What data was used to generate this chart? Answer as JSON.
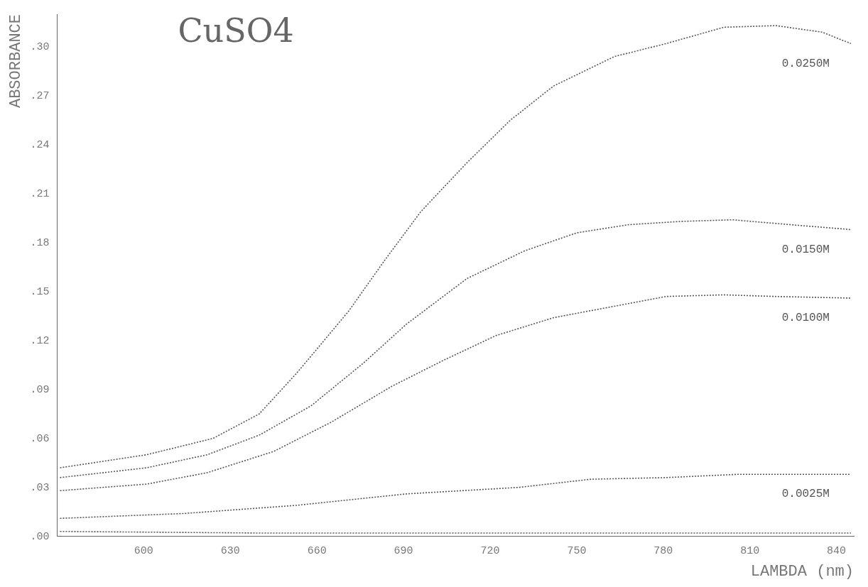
{
  "chart_data": {
    "type": "line",
    "title": "CuSO4",
    "xlabel": "LAMBDA (nm)",
    "ylabel": "ABSORBANCE",
    "xlim": [
      570,
      846
    ],
    "xticks": [
      600,
      630,
      660,
      690,
      720,
      750,
      780,
      810,
      840
    ],
    "ylim": [
      0,
      0.32
    ],
    "yticks": [
      {
        "value": 0,
        "label": ".00"
      },
      {
        "value": 0.03,
        "label": ".03"
      },
      {
        "value": 0.06,
        "label": ".06"
      },
      {
        "value": 0.09,
        "label": ".09"
      },
      {
        "value": 0.12,
        "label": ".12"
      },
      {
        "value": 0.15,
        "label": ".15"
      },
      {
        "value": 0.18,
        "label": ".18"
      },
      {
        "value": 0.21,
        "label": ".21"
      },
      {
        "value": 0.24,
        "label": ".24"
      },
      {
        "value": 0.27,
        "label": ".27"
      },
      {
        "value": 0.3,
        "label": ".30"
      }
    ],
    "grid": false,
    "legend": false,
    "marker": "none",
    "line_style": "dotted",
    "series": [
      {
        "name": "0.0250M",
        "color": "#555555",
        "x": [
          571,
          601,
          624,
          640,
          653,
          671,
          683,
          696,
          712,
          727,
          742,
          763,
          781,
          801,
          819,
          835,
          845
        ],
        "values": [
          0.042,
          0.05,
          0.06,
          0.075,
          0.1,
          0.138,
          0.168,
          0.199,
          0.229,
          0.255,
          0.276,
          0.294,
          0.302,
          0.312,
          0.313,
          0.309,
          0.302
        ]
      },
      {
        "name": "0.0150M",
        "color": "#555555",
        "x": [
          571,
          601,
          622,
          640,
          658,
          676,
          691,
          712,
          732,
          750,
          768,
          786,
          804,
          824,
          845
        ],
        "values": [
          0.036,
          0.042,
          0.05,
          0.062,
          0.08,
          0.106,
          0.13,
          0.158,
          0.175,
          0.186,
          0.191,
          0.193,
          0.194,
          0.191,
          0.188
        ]
      },
      {
        "name": "0.0100M",
        "color": "#555555",
        "x": [
          571,
          601,
          622,
          645,
          665,
          686,
          704,
          722,
          742,
          760,
          781,
          801,
          819,
          845
        ],
        "values": [
          0.028,
          0.032,
          0.039,
          0.052,
          0.07,
          0.092,
          0.108,
          0.123,
          0.134,
          0.14,
          0.147,
          0.148,
          0.147,
          0.146
        ]
      },
      {
        "name": "0.0025M",
        "color": "#555555",
        "x": [
          571,
          614,
          653,
          691,
          730,
          755,
          781,
          806,
          845
        ],
        "values": [
          0.011,
          0.014,
          0.019,
          0.026,
          0.03,
          0.035,
          0.036,
          0.038,
          0.038
        ]
      },
      {
        "color": "#555555",
        "x": [
          571,
          640,
          720,
          800,
          845
        ],
        "values": [
          0.003,
          0.002,
          0.002,
          0.002,
          0.002
        ]
      }
    ]
  }
}
